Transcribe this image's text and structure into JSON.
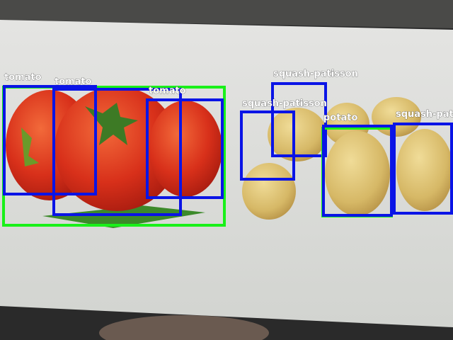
{
  "detections": [
    {
      "label": "tomato"
    },
    {
      "label": "tomato"
    },
    {
      "label": "tomato"
    },
    {
      "label": "squash-patisson"
    },
    {
      "label": "squash-patisson"
    },
    {
      "label": "potato"
    },
    {
      "label": "squash-patisson"
    }
  ]
}
